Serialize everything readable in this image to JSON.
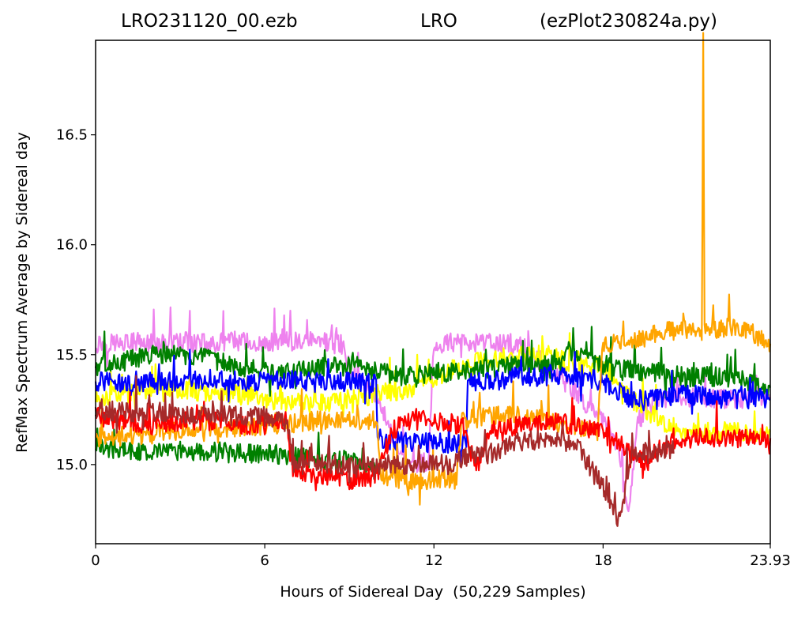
{
  "title": {
    "left": "LRO231120_00.ezb",
    "center": "LRO",
    "right": "(ezPlot230824a.py)"
  },
  "chart_data": {
    "type": "line",
    "xlabel": "Hours of Sidereal Day  (50,229 Samples)",
    "ylabel": "RefMax Spectrum Average by Sidereal day",
    "xlim": [
      0,
      23.93
    ],
    "ylim": [
      14.64,
      16.93
    ],
    "x_ticks": [
      0,
      6,
      12,
      18,
      23.93
    ],
    "x_tick_labels": [
      "0",
      "6",
      "12",
      "18",
      "23.93"
    ],
    "y_ticks": [
      15.0,
      15.5,
      16.0,
      16.5
    ],
    "y_tick_labels": [
      "15.0",
      "15.5",
      "16.0",
      "16.5"
    ],
    "grid": false,
    "legend": "none",
    "series": [
      {
        "color": "#ee82ee",
        "x": [
          0,
          1,
          2,
          3,
          4,
          5,
          6,
          7,
          8,
          8.7,
          9,
          10,
          11,
          11.8,
          12,
          13,
          14,
          15,
          16,
          17,
          18,
          18.5,
          18.9,
          19.2,
          20,
          21,
          22,
          23,
          23.93
        ],
        "y": [
          15.55,
          15.56,
          15.55,
          15.56,
          15.55,
          15.56,
          15.55,
          15.56,
          15.56,
          15.55,
          15.45,
          15.3,
          15.0,
          15.0,
          15.55,
          15.56,
          15.55,
          15.55,
          15.45,
          15.33,
          15.2,
          15.1,
          14.75,
          15.2,
          15.3,
          15.3,
          15.3,
          15.3,
          15.3
        ]
      },
      {
        "color": "#ffff00",
        "x": [
          0,
          1,
          2,
          3,
          4,
          5,
          6,
          7,
          8,
          9,
          10,
          11,
          12,
          13,
          14,
          15,
          16,
          17,
          18,
          19,
          20,
          21,
          22,
          23,
          23.93
        ],
        "y": [
          15.3,
          15.32,
          15.35,
          15.34,
          15.33,
          15.32,
          15.3,
          15.28,
          15.28,
          15.3,
          15.32,
          15.34,
          15.4,
          15.45,
          15.48,
          15.5,
          15.5,
          15.45,
          15.45,
          15.3,
          15.2,
          15.15,
          15.15,
          15.15,
          15.15
        ]
      },
      {
        "color": "#008000",
        "x": [
          0,
          1,
          2,
          3,
          4,
          5,
          6,
          7,
          8,
          9,
          10,
          11,
          12,
          13,
          14,
          15,
          16,
          16.5,
          17,
          18,
          19,
          20,
          21,
          22,
          23,
          23.93
        ],
        "y": [
          15.45,
          15.47,
          15.5,
          15.5,
          15.48,
          15.45,
          15.42,
          15.42,
          15.44,
          15.45,
          15.42,
          15.4,
          15.42,
          15.42,
          15.44,
          15.45,
          15.45,
          15.5,
          15.5,
          15.45,
          15.43,
          15.42,
          15.4,
          15.4,
          15.38,
          15.35
        ]
      },
      {
        "color": "#008000",
        "x": [
          0,
          1,
          2,
          3,
          4,
          5,
          6,
          7,
          8,
          9,
          10
        ],
        "y": [
          15.08,
          15.07,
          15.06,
          15.06,
          15.06,
          15.05,
          15.05,
          15.04,
          15.02,
          15.02,
          15.0
        ]
      },
      {
        "color": "#0000ff",
        "x": [
          0,
          1,
          2,
          3,
          4,
          5,
          6,
          7,
          8,
          9,
          9.9,
          9.95,
          10,
          11,
          12,
          13,
          13.15,
          13.2,
          14,
          15,
          16,
          17,
          18,
          19,
          20,
          21,
          22,
          23,
          23.93
        ],
        "y": [
          15.38,
          15.37,
          15.38,
          15.38,
          15.39,
          15.38,
          15.38,
          15.38,
          15.37,
          15.38,
          15.37,
          15.38,
          15.12,
          15.1,
          15.1,
          15.1,
          15.1,
          15.38,
          15.38,
          15.4,
          15.4,
          15.4,
          15.38,
          15.3,
          15.3,
          15.32,
          15.3,
          15.3,
          15.3
        ]
      },
      {
        "color": "#ffa500",
        "x": [
          0,
          1,
          2,
          3,
          4,
          5,
          6,
          7,
          8,
          9,
          10,
          10.1,
          11,
          12,
          12.8,
          13,
          14,
          15,
          16,
          17,
          17.8,
          18,
          19,
          20,
          21,
          21.5,
          21.55,
          21.6,
          22,
          23,
          23.93
        ],
        "y": [
          15.12,
          15.13,
          15.14,
          15.15,
          15.16,
          15.17,
          15.18,
          15.19,
          15.2,
          15.2,
          15.2,
          14.95,
          14.93,
          14.93,
          14.93,
          15.2,
          15.22,
          15.22,
          15.2,
          15.18,
          15.15,
          15.55,
          15.55,
          15.6,
          15.62,
          15.6,
          16.87,
          15.62,
          15.62,
          15.62,
          15.55
        ]
      },
      {
        "color": "#ff0000",
        "x": [
          0,
          1,
          2,
          3,
          4,
          5,
          6,
          6.8,
          7,
          8,
          9,
          10,
          10.5,
          11,
          12,
          13,
          13.5,
          14,
          15,
          16,
          17,
          18,
          18.5,
          19,
          19.5,
          20,
          20.5,
          21,
          22,
          23,
          23.93
        ],
        "y": [
          15.22,
          15.2,
          15.18,
          15.2,
          15.2,
          15.18,
          15.18,
          15.2,
          14.98,
          14.95,
          14.93,
          14.95,
          15.15,
          15.2,
          15.2,
          15.18,
          14.98,
          15.15,
          15.18,
          15.2,
          15.18,
          15.15,
          15.1,
          15.05,
          15.0,
          15.08,
          15.1,
          15.12,
          15.12,
          15.12,
          15.12
        ]
      },
      {
        "color": "#a52a2a",
        "x": [
          0,
          1,
          2,
          3,
          4,
          5,
          6,
          6.8,
          7,
          8,
          9,
          10,
          11,
          11.8,
          12.5,
          13,
          14,
          15,
          16,
          17,
          17.5,
          18,
          18.3,
          18.6,
          19,
          20,
          20.5
        ],
        "y": [
          15.25,
          15.24,
          15.24,
          15.23,
          15.23,
          15.22,
          15.22,
          15.18,
          15.0,
          15.0,
          15.0,
          15.0,
          15.0,
          15.0,
          15.0,
          15.03,
          15.05,
          15.1,
          15.12,
          15.1,
          15.0,
          14.9,
          14.8,
          14.75,
          15.05,
          15.05,
          15.05
        ]
      }
    ]
  }
}
